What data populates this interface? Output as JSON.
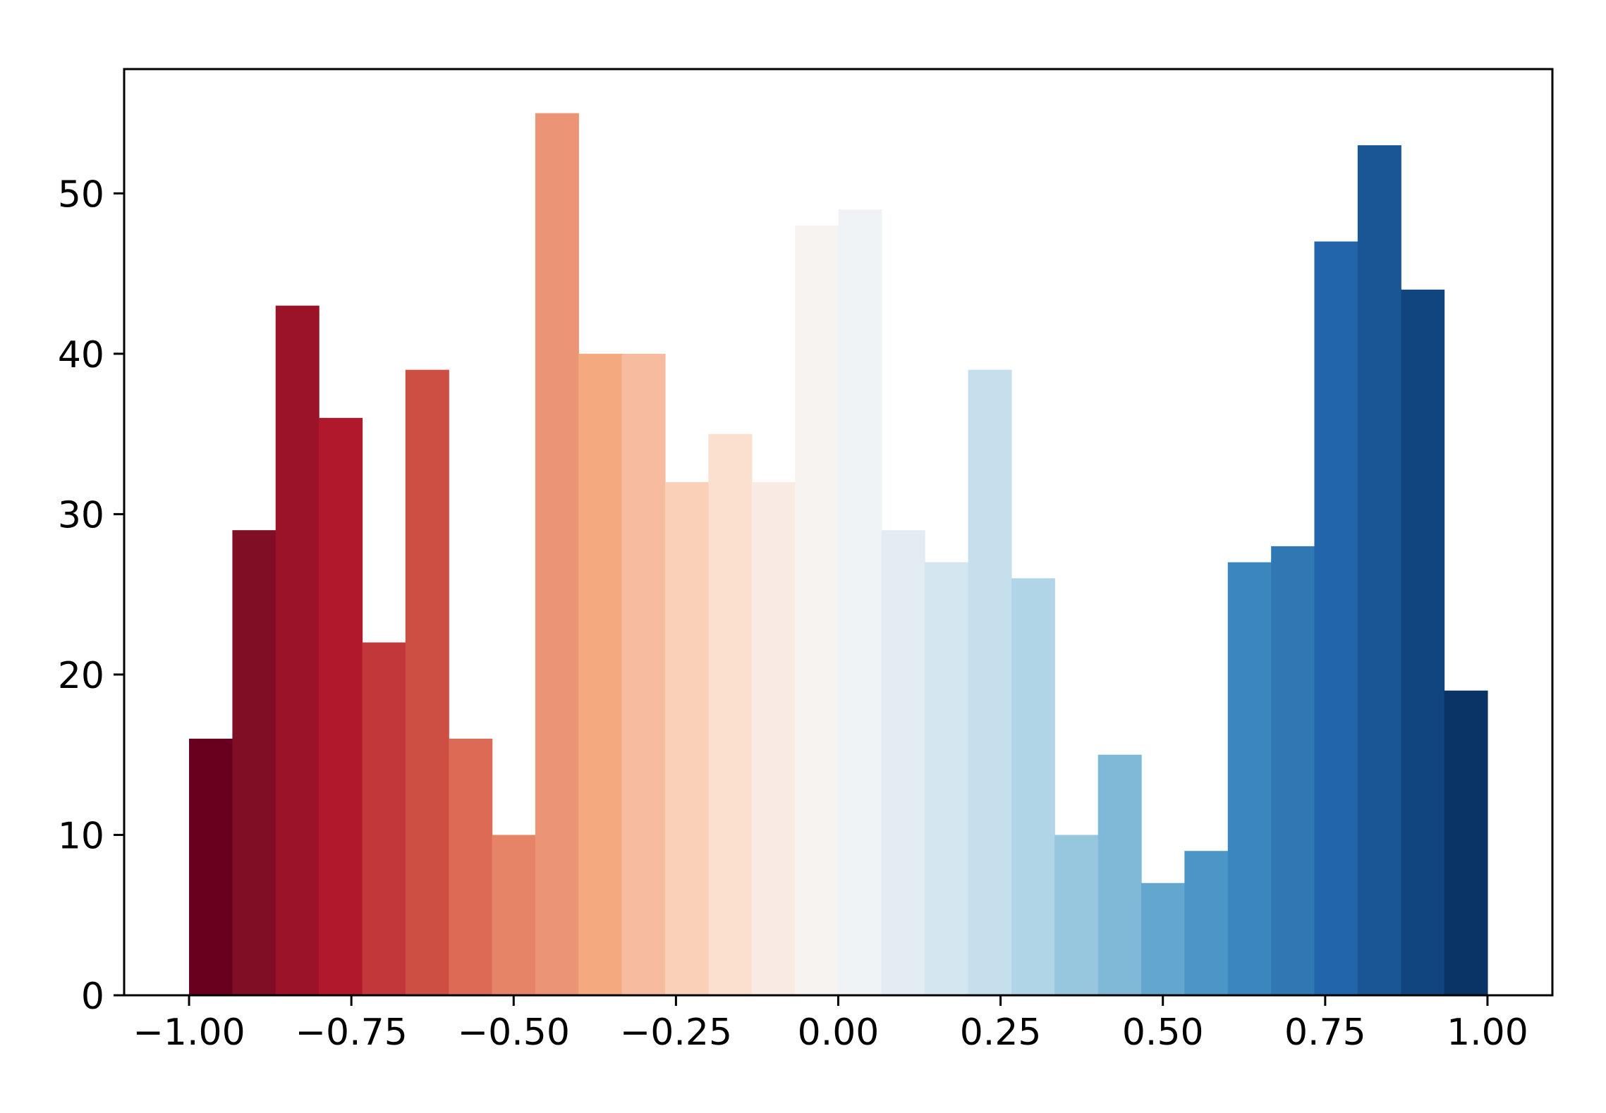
{
  "chart_data": {
    "type": "bar",
    "title": "",
    "xlabel": "",
    "ylabel": "",
    "bin_edges": [
      -1.0,
      -0.9333,
      -0.8667,
      -0.8,
      -0.7333,
      -0.6667,
      -0.6,
      -0.5333,
      -0.4667,
      -0.4,
      -0.3333,
      -0.2667,
      -0.2,
      -0.1333,
      -0.0667,
      0.0,
      0.0667,
      0.1333,
      0.2,
      0.2667,
      0.3333,
      0.4,
      0.4667,
      0.5333,
      0.6,
      0.6667,
      0.7333,
      0.8,
      0.8667,
      0.9333,
      1.0
    ],
    "values": [
      16,
      29,
      43,
      36,
      22,
      39,
      16,
      10,
      55,
      40,
      40,
      32,
      35,
      32,
      48,
      49,
      29,
      27,
      39,
      26,
      10,
      15,
      7,
      9,
      27,
      28,
      47,
      53,
      44,
      19
    ],
    "colors": [
      "#67001f",
      "#800e25",
      "#9a1329",
      "#b2182b",
      "#c1373a",
      "#cd4f44",
      "#db6b55",
      "#e58466",
      "#ec9576",
      "#f4a97e",
      "#f7bba0",
      "#fad0b8",
      "#fbdfcf",
      "#f9ebe3",
      "#f7f3f0",
      "#eff3f5",
      "#e2ecf2",
      "#d4e6f0",
      "#c6dfec",
      "#b0d5e6",
      "#97c6df",
      "#80b9d8",
      "#63a7ce",
      "#4b96c6",
      "#3a86bd",
      "#2f78b4",
      "#2265aa",
      "#1a5696",
      "#114580",
      "#0a3366"
    ],
    "xlim": [
      -1.1,
      1.1
    ],
    "ylim": [
      0,
      57.75
    ],
    "xticks": [
      -1.0,
      -0.75,
      -0.5,
      -0.25,
      0.0,
      0.25,
      0.5,
      0.75,
      1.0
    ],
    "xtick_labels": [
      "−1.00",
      "−0.75",
      "−0.50",
      "−0.25",
      "0.00",
      "0.25",
      "0.50",
      "0.75",
      "1.00"
    ],
    "yticks": [
      0,
      10,
      20,
      30,
      40,
      50
    ],
    "ytick_labels": [
      "0",
      "10",
      "20",
      "30",
      "40",
      "50"
    ],
    "grid": false,
    "legend": "none"
  }
}
